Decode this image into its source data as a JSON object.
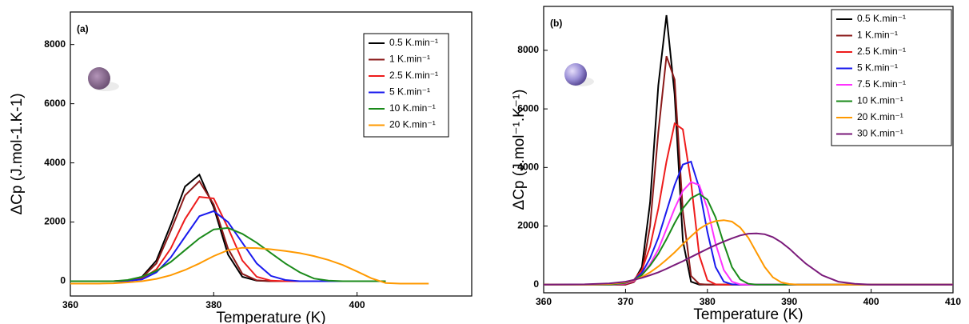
{
  "chart_data": [
    {
      "type": "line",
      "panel_label": "(a)",
      "x_label": "Temperature (K)",
      "y_label": "ΔCp (J.mol-1.K-1)",
      "xlim": [
        360,
        416
      ],
      "xticks": [
        360,
        380,
        400
      ],
      "ylim": [
        -500,
        9100
      ],
      "yticks": [
        0,
        2000,
        4000,
        6000,
        8000
      ],
      "x": [
        360,
        362,
        364,
        366,
        368,
        370,
        372,
        374,
        376,
        378,
        380,
        382,
        384,
        386,
        388,
        390,
        392,
        394,
        396,
        398,
        400,
        402,
        404,
        406,
        408,
        410
      ],
      "series": [
        {
          "name": "0.5 K.min⁻¹",
          "color": "#000000",
          "values": [
            0,
            0,
            0,
            0,
            20,
            150,
            700,
            1900,
            3200,
            3600,
            2500,
            900,
            150,
            20,
            0,
            0,
            0,
            0,
            0,
            0,
            0,
            0,
            0,
            null,
            null,
            null
          ]
        },
        {
          "name": "1 K.min⁻¹",
          "color": "#8b1a1a",
          "values": [
            0,
            0,
            0,
            0,
            15,
            120,
            600,
            1700,
            2900,
            3380,
            2600,
            1100,
            250,
            30,
            0,
            0,
            0,
            0,
            0,
            0,
            0,
            0,
            0,
            null,
            null,
            null
          ]
        },
        {
          "name": "2.5 K.min⁻¹",
          "color": "#ee1c1c",
          "values": [
            0,
            0,
            0,
            0,
            10,
            80,
            400,
            1100,
            2100,
            2850,
            2800,
            1800,
            700,
            150,
            20,
            0,
            0,
            0,
            0,
            0,
            0,
            0,
            0,
            null,
            null,
            null
          ]
        },
        {
          "name": "5 K.min⁻¹",
          "color": "#1a1aee",
          "values": [
            0,
            0,
            0,
            0,
            10,
            60,
            300,
            800,
            1500,
            2200,
            2370,
            2000,
            1300,
            600,
            180,
            40,
            0,
            0,
            0,
            0,
            0,
            0,
            0,
            null,
            null,
            null
          ]
        },
        {
          "name": "10 K.min⁻¹",
          "color": "#1a8a1a",
          "values": [
            0,
            0,
            0,
            0,
            40,
            150,
            350,
            650,
            1050,
            1450,
            1750,
            1800,
            1600,
            1300,
            950,
            600,
            300,
            90,
            20,
            0,
            0,
            0,
            0,
            null,
            null,
            null
          ]
        },
        {
          "name": "20 K.min⁻¹",
          "color": "#ff9900",
          "values": [
            -80,
            -80,
            -80,
            -70,
            -40,
            0,
            80,
            200,
            380,
            600,
            850,
            1050,
            1130,
            1120,
            1080,
            1020,
            950,
            850,
            720,
            550,
            330,
            100,
            -60,
            -80,
            -80,
            -80
          ]
        }
      ]
    },
    {
      "type": "line",
      "panel_label": "(b)",
      "x_label": "Temperature (K)",
      "y_label": "ΔCp (J.mol⁻¹.K⁻¹)",
      "xlim": [
        360,
        410
      ],
      "xticks": [
        360,
        370,
        380,
        390,
        400,
        410
      ],
      "ylim": [
        -280,
        9500
      ],
      "yticks": [
        0,
        2000,
        4000,
        6000,
        8000
      ],
      "x": [
        360,
        365,
        368,
        370,
        371,
        372,
        373,
        374,
        375,
        376,
        377,
        378,
        379,
        380,
        381,
        382,
        383,
        384,
        385,
        386,
        387,
        388,
        389,
        390,
        391,
        392,
        394,
        396,
        398,
        400,
        405,
        410
      ],
      "series": [
        {
          "name": "0.5 K.min⁻¹",
          "color": "#000000",
          "values": [
            0,
            0,
            0,
            0,
            100,
            600,
            2800,
            6800,
            9200,
            6500,
            1500,
            100,
            0,
            0,
            0,
            0,
            0,
            0,
            0,
            0,
            0,
            0,
            0,
            0,
            0,
            0,
            0,
            0,
            0,
            0,
            0,
            0
          ]
        },
        {
          "name": "1 K.min⁻¹",
          "color": "#8b1a1a",
          "values": [
            0,
            0,
            0,
            0,
            80,
            400,
            2000,
            5200,
            7800,
            7000,
            2500,
            300,
            20,
            0,
            0,
            0,
            0,
            0,
            0,
            0,
            0,
            0,
            0,
            0,
            0,
            0,
            0,
            0,
            0,
            0,
            0,
            0
          ]
        },
        {
          "name": "2.5 K.min⁻¹",
          "color": "#ee1c1c",
          "values": [
            0,
            0,
            0,
            30,
            150,
            500,
            1300,
            2600,
            4200,
            5500,
            5300,
            3500,
            1000,
            150,
            10,
            0,
            0,
            0,
            0,
            0,
            0,
            0,
            0,
            0,
            0,
            0,
            0,
            0,
            0,
            0,
            0,
            0
          ]
        },
        {
          "name": "5 K.min⁻¹",
          "color": "#1a1aee",
          "values": [
            0,
            0,
            0,
            40,
            150,
            400,
            900,
            1600,
            2500,
            3400,
            4100,
            4200,
            3300,
            1800,
            600,
            100,
            10,
            0,
            0,
            0,
            0,
            0,
            0,
            0,
            0,
            0,
            0,
            0,
            0,
            0,
            0,
            0
          ]
        },
        {
          "name": "7.5 K.min⁻¹",
          "color": "#ff33ff",
          "values": [
            0,
            0,
            0,
            40,
            120,
            330,
            700,
            1200,
            1900,
            2600,
            3200,
            3500,
            3400,
            2600,
            1400,
            500,
            100,
            10,
            0,
            0,
            0,
            0,
            0,
            0,
            0,
            0,
            0,
            0,
            0,
            0,
            0,
            0
          ]
        },
        {
          "name": "10 K.min⁻¹",
          "color": "#1a8a1a",
          "values": [
            0,
            0,
            0,
            60,
            150,
            330,
            650,
            1050,
            1550,
            2100,
            2600,
            2950,
            3100,
            2900,
            2300,
            1400,
            600,
            180,
            30,
            0,
            0,
            0,
            0,
            0,
            0,
            0,
            0,
            0,
            0,
            0,
            0,
            0
          ]
        },
        {
          "name": "20 K.min⁻¹",
          "color": "#ff9900",
          "values": [
            0,
            0,
            20,
            80,
            150,
            260,
            420,
            620,
            850,
            1100,
            1380,
            1650,
            1900,
            2070,
            2170,
            2200,
            2150,
            1950,
            1600,
            1100,
            600,
            250,
            80,
            20,
            0,
            0,
            0,
            0,
            0,
            0,
            0,
            0
          ]
        },
        {
          "name": "30 K.min⁻¹",
          "color": "#7a1a7a",
          "values": [
            0,
            10,
            40,
            100,
            160,
            230,
            320,
            420,
            540,
            670,
            800,
            940,
            1080,
            1220,
            1350,
            1470,
            1580,
            1680,
            1740,
            1750,
            1720,
            1620,
            1450,
            1230,
            970,
            720,
            320,
            100,
            30,
            0,
            0,
            0
          ]
        }
      ]
    }
  ]
}
